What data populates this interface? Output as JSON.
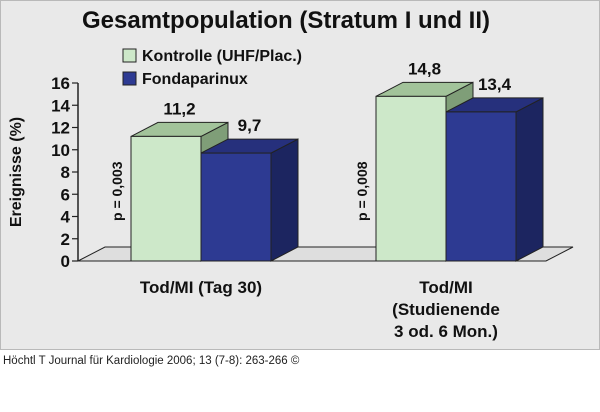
{
  "source": "Höchtl T Journal für Kardiologie 2006; 13 (7-8): 263-266 ©",
  "chart_data": {
    "type": "bar",
    "title": "Gesamtpopulation (Stratum I und II)",
    "ylabel": "Ereignisse (%)",
    "ylim": [
      0,
      16
    ],
    "yticks": [
      "0",
      "2",
      "4",
      "6",
      "8",
      "10",
      "12",
      "14",
      "16"
    ],
    "legend_position": "top-left",
    "categories": [
      {
        "lines": [
          "Tod/MI (Tag 30)"
        ]
      },
      {
        "lines": [
          "Tod/MI",
          "(Studienende",
          "3 od. 6 Mon.)"
        ]
      }
    ],
    "series": [
      {
        "name": "Kontrolle (UHF/Plac.)",
        "values": [
          11.2,
          14.8
        ],
        "labels": [
          "11,2",
          "14,8"
        ],
        "color": "#cde8c9",
        "top_color": "#a2c39a",
        "side_color": "#7f9e78"
      },
      {
        "name": "Fondaparinux",
        "values": [
          9.7,
          13.4
        ],
        "labels": [
          "9,7",
          "13,4"
        ],
        "color": "#2d3a92",
        "top_color": "#26307c",
        "side_color": "#1c2560"
      }
    ],
    "annotations": [
      "p = 0,003",
      "p = 0,008"
    ]
  }
}
